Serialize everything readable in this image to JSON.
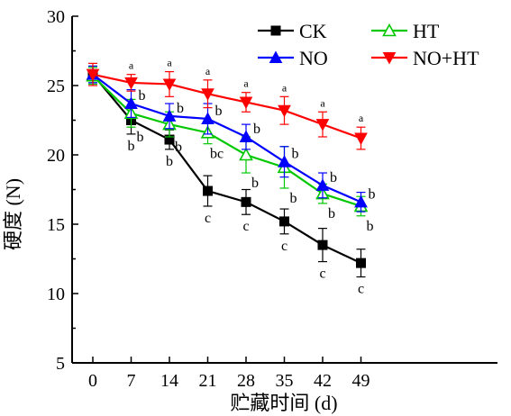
{
  "chart_data": {
    "type": "line",
    "xlabel": "贮藏时间 (d)",
    "ylabel": "硬度 (N)",
    "ylim": [
      5,
      30
    ],
    "x": [
      0,
      7,
      14,
      21,
      28,
      35,
      42,
      49
    ],
    "x_tick_labels": [
      "0",
      "7",
      "14",
      "21",
      "28",
      "35",
      "42",
      "49"
    ],
    "y_tick_labels": [
      "5",
      "10",
      "15",
      "20",
      "25",
      "30"
    ],
    "grid": false,
    "legend_position": "top-right",
    "series": [
      {
        "name": "CK",
        "color": "#000000",
        "marker": "square",
        "values": [
          25.8,
          22.5,
          21.1,
          17.4,
          16.6,
          15.2,
          13.5,
          12.2
        ],
        "errors": [
          0.6,
          1.0,
          0.7,
          1.1,
          0.9,
          0.9,
          1.2,
          1.0
        ],
        "sig_labels": [
          "",
          "b",
          "b",
          "c",
          "c",
          "c",
          "c",
          "c"
        ]
      },
      {
        "name": "HT",
        "color": "#00c800",
        "marker": "triangle-up-open",
        "values": [
          25.7,
          23.0,
          22.2,
          21.6,
          20.0,
          19.1,
          17.2,
          16.3
        ],
        "errors": [
          0.6,
          1.0,
          0.9,
          0.8,
          1.3,
          1.5,
          0.7,
          0.7
        ],
        "sig_labels": [
          "",
          "b",
          "b",
          "bc",
          "b",
          "b",
          "b",
          "b"
        ]
      },
      {
        "name": "NO",
        "color": "#0000ff",
        "marker": "triangle-up",
        "values": [
          25.8,
          23.7,
          22.8,
          22.6,
          21.3,
          19.5,
          17.8,
          16.6
        ],
        "errors": [
          0.6,
          1.0,
          0.9,
          1.1,
          0.9,
          1.1,
          0.9,
          0.7
        ],
        "sig_labels": [
          "",
          "b",
          "b",
          "b",
          "b",
          "b",
          "b",
          "b"
        ]
      },
      {
        "name": "NO+HT",
        "color": "#ff0000",
        "marker": "triangle-down",
        "values": [
          25.8,
          25.2,
          25.1,
          24.4,
          23.8,
          23.2,
          22.2,
          21.2
        ],
        "errors": [
          0.8,
          0.6,
          0.9,
          1.0,
          0.7,
          1.0,
          0.9,
          0.8
        ],
        "sig_labels": [
          "",
          "a",
          "a",
          "a",
          "a",
          "a",
          "a",
          "a"
        ]
      }
    ]
  }
}
